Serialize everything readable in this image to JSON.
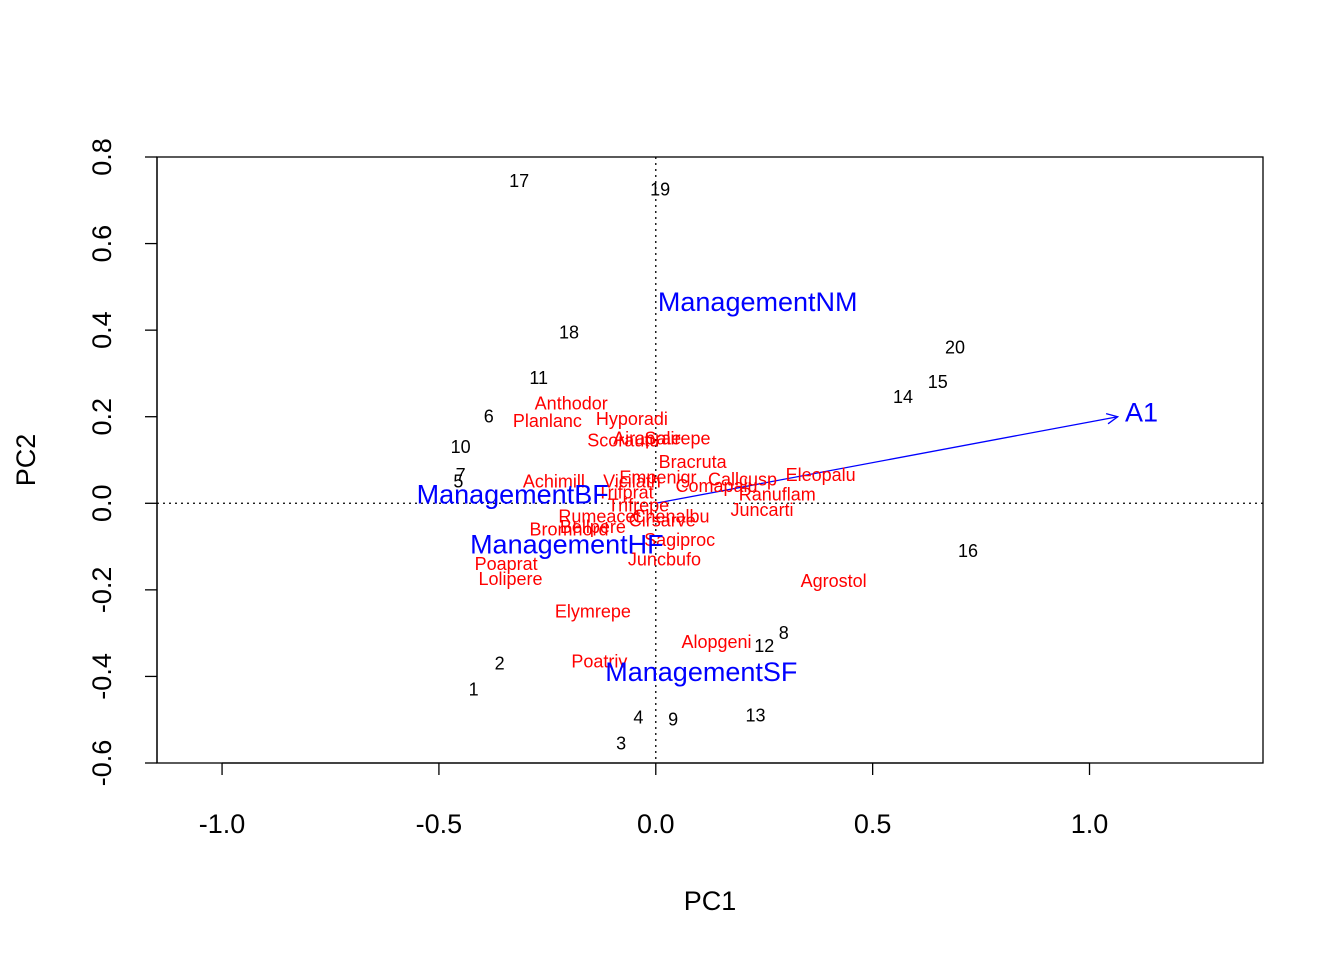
{
  "colors": {
    "sites": "#000000",
    "species": "#ff0000",
    "constraints": "#0000ff",
    "axes": "#000000"
  },
  "chart_data": {
    "type": "scatter",
    "title": "",
    "xlabel": "PC1",
    "ylabel": "PC2",
    "xlim": [
      -1.15,
      1.4
    ],
    "ylim": [
      -0.6,
      0.8
    ],
    "x_ticks": [
      {
        "value": -1.0,
        "label": "-1.0"
      },
      {
        "value": -0.5,
        "label": "-0.5"
      },
      {
        "value": 0.0,
        "label": "0.0"
      },
      {
        "value": 0.5,
        "label": "0.5"
      },
      {
        "value": 1.0,
        "label": "1.0"
      }
    ],
    "y_ticks": [
      {
        "value": -0.6,
        "label": "-0.6"
      },
      {
        "value": -0.4,
        "label": "-0.4"
      },
      {
        "value": -0.2,
        "label": "-0.2"
      },
      {
        "value": 0.0,
        "label": "0.0"
      },
      {
        "value": 0.2,
        "label": "0.2"
      },
      {
        "value": 0.4,
        "label": "0.4"
      },
      {
        "value": 0.6,
        "label": "0.6"
      },
      {
        "value": 0.8,
        "label": "0.8"
      }
    ],
    "reference_lines": {
      "x": 0,
      "y": 0,
      "style": "dotted"
    },
    "sites": [
      {
        "label": "1",
        "x": -0.42,
        "y": -0.43
      },
      {
        "label": "2",
        "x": -0.36,
        "y": -0.37
      },
      {
        "label": "3",
        "x": -0.08,
        "y": -0.555
      },
      {
        "label": "4",
        "x": -0.04,
        "y": -0.495
      },
      {
        "label": "5",
        "x": -0.455,
        "y": 0.05
      },
      {
        "label": "6",
        "x": -0.385,
        "y": 0.2
      },
      {
        "label": "7",
        "x": -0.45,
        "y": 0.065
      },
      {
        "label": "8",
        "x": 0.295,
        "y": -0.3
      },
      {
        "label": "9",
        "x": 0.04,
        "y": -0.5
      },
      {
        "label": "10",
        "x": -0.45,
        "y": 0.13
      },
      {
        "label": "11",
        "x": -0.27,
        "y": 0.29
      },
      {
        "label": "12",
        "x": 0.25,
        "y": -0.33
      },
      {
        "label": "13",
        "x": 0.23,
        "y": -0.49
      },
      {
        "label": "14",
        "x": 0.57,
        "y": 0.245
      },
      {
        "label": "15",
        "x": 0.65,
        "y": 0.28
      },
      {
        "label": "16",
        "x": 0.72,
        "y": -0.11
      },
      {
        "label": "17",
        "x": -0.315,
        "y": 0.745
      },
      {
        "label": "18",
        "x": -0.2,
        "y": 0.395
      },
      {
        "label": "19",
        "x": 0.01,
        "y": 0.725
      },
      {
        "label": "20",
        "x": 0.69,
        "y": 0.36
      }
    ],
    "species": [
      {
        "label": "Achimill",
        "x": -0.235,
        "y": 0.05
      },
      {
        "label": "Agrostol",
        "x": 0.41,
        "y": -0.18
      },
      {
        "label": "Airaprae",
        "x": -0.02,
        "y": 0.15
      },
      {
        "label": "Alopgeni",
        "x": 0.14,
        "y": -0.32
      },
      {
        "label": "Anthodor",
        "x": -0.195,
        "y": 0.23
      },
      {
        "label": "Bellpere",
        "x": -0.145,
        "y": -0.055
      },
      {
        "label": "Bromhord",
        "x": -0.2,
        "y": -0.06
      },
      {
        "label": "Chenalbu",
        "x": 0.035,
        "y": -0.03
      },
      {
        "label": "Cirsarve",
        "x": 0.015,
        "y": -0.04
      },
      {
        "label": "Comapalu",
        "x": 0.14,
        "y": 0.04
      },
      {
        "label": "Eleopalu",
        "x": 0.38,
        "y": 0.065
      },
      {
        "label": "Elymrepe",
        "x": -0.145,
        "y": -0.25
      },
      {
        "label": "Empenigr",
        "x": 0.005,
        "y": 0.06
      },
      {
        "label": "Hyporadi",
        "x": -0.055,
        "y": 0.195
      },
      {
        "label": "Juncarti",
        "x": 0.245,
        "y": -0.015
      },
      {
        "label": "Juncbufo",
        "x": 0.02,
        "y": -0.13
      },
      {
        "label": "Lolipere",
        "x": -0.335,
        "y": -0.175
      },
      {
        "label": "Planlanc",
        "x": -0.25,
        "y": 0.19
      },
      {
        "label": "Poaprat",
        "x": -0.345,
        "y": -0.14
      },
      {
        "label": "Poatriv",
        "x": -0.13,
        "y": -0.365
      },
      {
        "label": "Ranuflam",
        "x": 0.28,
        "y": 0.02
      },
      {
        "label": "Rumeacet",
        "x": -0.13,
        "y": -0.03
      },
      {
        "label": "Sagiproc",
        "x": 0.055,
        "y": -0.085
      },
      {
        "label": "Salirepe",
        "x": 0.05,
        "y": 0.15
      },
      {
        "label": "Scorautu",
        "x": -0.075,
        "y": 0.145
      },
      {
        "label": "Trifprat",
        "x": -0.07,
        "y": 0.025
      },
      {
        "label": "Trifrepe",
        "x": -0.04,
        "y": -0.005
      },
      {
        "label": "Vicilath",
        "x": -0.055,
        "y": 0.05
      },
      {
        "label": "Bracruta",
        "x": 0.085,
        "y": 0.095
      },
      {
        "label": "Callcusp",
        "x": 0.2,
        "y": 0.055
      }
    ],
    "centroids": [
      {
        "label": "ManagementNM",
        "x": 0.235,
        "y": 0.465
      },
      {
        "label": "ManagementBF",
        "x": -0.33,
        "y": 0.02
      },
      {
        "label": "ManagementHF",
        "x": -0.205,
        "y": -0.095
      },
      {
        "label": "ManagementSF",
        "x": 0.105,
        "y": -0.39
      }
    ],
    "vectors": [
      {
        "label": "A1",
        "x": 1.065,
        "y": 0.2,
        "label_x": 1.12,
        "label_y": 0.21
      }
    ]
  }
}
